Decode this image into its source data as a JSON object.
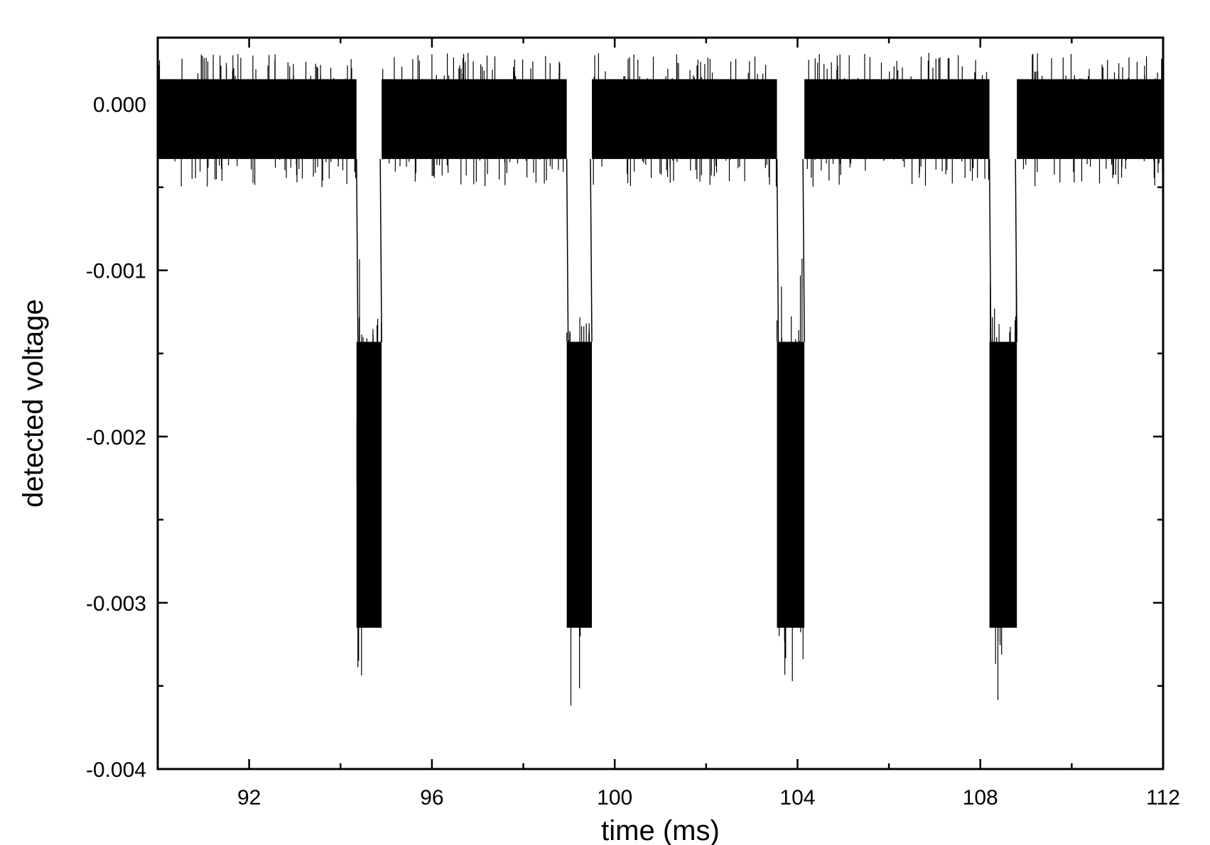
{
  "chart_data": {
    "type": "line",
    "title": "",
    "xlabel": "time (ms)",
    "ylabel": "detected voltage",
    "xlim": [
      90,
      112
    ],
    "ylim": [
      -0.004,
      0.0004
    ],
    "x_ticks": [
      92,
      96,
      100,
      104,
      108,
      112
    ],
    "x_tick_labels": [
      "92",
      "96",
      "100",
      "104",
      "108",
      "112"
    ],
    "x_minor_ticks": [
      94,
      98,
      102,
      106,
      110
    ],
    "y_ticks": [
      0.0,
      -0.001,
      -0.002,
      -0.003,
      -0.004
    ],
    "y_tick_labels": [
      "0.000",
      "-0.001",
      "-0.002",
      "-0.003",
      "-0.004"
    ],
    "y_minor_ticks": [
      -0.0005,
      -0.0015,
      -0.0025,
      -0.0035
    ],
    "grid": false,
    "legend": "none",
    "line_color": "#000000",
    "series": [
      {
        "baseline": {
          "level": 0.0,
          "noise_band": [
            -0.00033,
            0.00015
          ],
          "noise_extremes": [
            -0.0005,
            0.00031
          ]
        },
        "pulses": [
          {
            "start": 94.35,
            "end": 94.9,
            "band": [
              -0.00315,
              -0.00143
            ],
            "extremes": [
              -0.0035,
              -0.00127
            ]
          },
          {
            "start": 98.95,
            "end": 99.5,
            "band": [
              -0.00315,
              -0.00143
            ],
            "extremes": [
              -0.00365,
              -0.00127
            ]
          },
          {
            "start": 103.55,
            "end": 104.15,
            "band": [
              -0.00315,
              -0.00143
            ],
            "extremes": [
              -0.0035,
              -0.00127
            ]
          },
          {
            "start": 108.2,
            "end": 108.8,
            "band": [
              -0.00315,
              -0.00143
            ],
            "extremes": [
              -0.00365,
              -0.00127
            ]
          }
        ]
      }
    ]
  }
}
